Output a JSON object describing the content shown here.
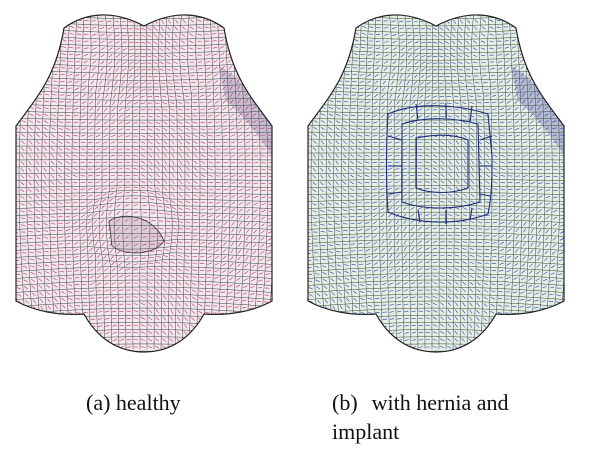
{
  "figure": {
    "panels": [
      {
        "id": "a",
        "label": "(a)",
        "text": "healthy",
        "mesh_stroke": "#2a2a2a",
        "vector_color": "#c0306a",
        "tint": "#f2e8ee"
      },
      {
        "id": "b",
        "label": "(b)",
        "text_line1": "with hernia and",
        "text_line2": "implant",
        "mesh_stroke": "#2a2a2a",
        "vector_color": "#2b3bb0",
        "tint": "#e4f0e6",
        "implant_stroke": "#1a2a7a"
      }
    ]
  }
}
